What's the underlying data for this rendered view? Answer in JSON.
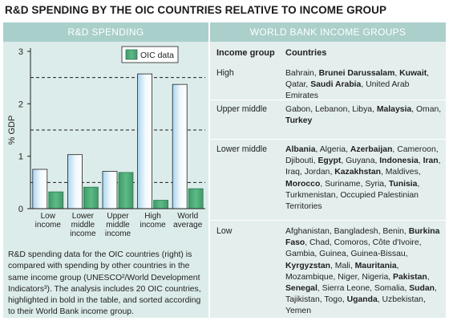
{
  "title": "R&D SPENDING BY THE OIC COUNTRIES RELATIVE TO INCOME GROUP",
  "left_header": "R&D SPENDING",
  "right_header": "WORLD BANK INCOME GROUPS",
  "chart_data": {
    "type": "bar",
    "ylabel": "% GDP",
    "ylim": [
      0,
      3
    ],
    "yticks": [
      "0",
      "1",
      "2",
      "3"
    ],
    "reference_lines": [
      0.5,
      1.5,
      2.5
    ],
    "categories": [
      [
        "Low",
        "income"
      ],
      [
        "Lower",
        "middle",
        "income"
      ],
      [
        "Upper",
        "middle",
        "income"
      ],
      [
        "High",
        "income"
      ],
      [
        "World",
        "average"
      ]
    ],
    "series": [
      {
        "name": "",
        "values": [
          0.75,
          1.03,
          0.71,
          2.57,
          2.37
        ]
      },
      {
        "name": "OIC data",
        "values": [
          0.32,
          0.41,
          0.69,
          0.16,
          0.38
        ]
      }
    ],
    "legend_position": "top-right",
    "colors": {
      "reference_fill": "#ffffff",
      "reference_edge": "#aad6f1",
      "oic_fill": "#4fae7a",
      "oic_edge": "#2a7b52",
      "bar_stroke": "#222222"
    }
  },
  "caption": {
    "text": "R&D spending data for the OIC countries (right) is compared with spending by other countries in the same income group (UNESCO²/World Development Indicators³). The analysis includes 20 OIC countries, highlighted in bold in the table, and sorted according to their World Bank income group."
  },
  "table": {
    "headers": {
      "income_group": "Income group",
      "countries": "Countries"
    },
    "rows": [
      {
        "group": "High",
        "countries": [
          {
            "name": "Bahrain",
            "bold": false
          },
          {
            "name": "Brunei Darussalam",
            "bold": true
          },
          {
            "name": "Kuwait",
            "bold": true
          },
          {
            "name": "Qatar",
            "bold": false
          },
          {
            "name": "Saudi Arabia",
            "bold": true
          },
          {
            "name": "United Arab Emirates",
            "bold": false
          }
        ]
      },
      {
        "group": "Upper middle",
        "countries": [
          {
            "name": "Gabon",
            "bold": false
          },
          {
            "name": "Lebanon",
            "bold": false
          },
          {
            "name": "Libya",
            "bold": false
          },
          {
            "name": "Malaysia",
            "bold": true
          },
          {
            "name": "Oman",
            "bold": false
          },
          {
            "name": "Turkey",
            "bold": true
          }
        ]
      },
      {
        "group": "Lower middle",
        "countries": [
          {
            "name": "Albania",
            "bold": true
          },
          {
            "name": "Algeria",
            "bold": false
          },
          {
            "name": "Azerbaijan",
            "bold": true
          },
          {
            "name": "Cameroon",
            "bold": false
          },
          {
            "name": "Djibouti",
            "bold": false
          },
          {
            "name": "Egypt",
            "bold": true
          },
          {
            "name": "Guyana",
            "bold": false
          },
          {
            "name": "Indonesia",
            "bold": true
          },
          {
            "name": "Iran",
            "bold": true
          },
          {
            "name": "Iraq",
            "bold": false
          },
          {
            "name": "Jordan",
            "bold": false
          },
          {
            "name": "Kazakhstan",
            "bold": true
          },
          {
            "name": "Maldives",
            "bold": false
          },
          {
            "name": "Morocco",
            "bold": true
          },
          {
            "name": "Suriname",
            "bold": false
          },
          {
            "name": "Syria",
            "bold": false
          },
          {
            "name": "Tunisia",
            "bold": true
          },
          {
            "name": "Turkmenistan",
            "bold": false
          },
          {
            "name": "Occupied Palestinian Territories",
            "bold": false
          }
        ]
      },
      {
        "group": "Low",
        "countries": [
          {
            "name": "Afghanistan",
            "bold": false
          },
          {
            "name": "Bangladesh",
            "bold": false
          },
          {
            "name": "Benin",
            "bold": false
          },
          {
            "name": "Burkina Faso",
            "bold": true
          },
          {
            "name": "Chad",
            "bold": false
          },
          {
            "name": "Comoros",
            "bold": false
          },
          {
            "name": "Côte d'Ivoire",
            "bold": false
          },
          {
            "name": "Gambia",
            "bold": false
          },
          {
            "name": "Guinea",
            "bold": false
          },
          {
            "name": "Guinea-Bissau",
            "bold": false
          },
          {
            "name": "Kyrgyzstan",
            "bold": true
          },
          {
            "name": "Mali",
            "bold": false
          },
          {
            "name": "Mauritania",
            "bold": true
          },
          {
            "name": "Mozambique",
            "bold": false
          },
          {
            "name": "Niger",
            "bold": false
          },
          {
            "name": "Nigeria",
            "bold": false
          },
          {
            "name": "Pakistan",
            "bold": true
          },
          {
            "name": "Senegal",
            "bold": true
          },
          {
            "name": "Sierra Leone",
            "bold": false
          },
          {
            "name": "Somalia",
            "bold": false
          },
          {
            "name": "Sudan",
            "bold": true
          },
          {
            "name": "Tajikistan",
            "bold": false
          },
          {
            "name": "Togo",
            "bold": false
          },
          {
            "name": "Uganda",
            "bold": true
          },
          {
            "name": "Uzbekistan",
            "bold": false
          },
          {
            "name": "Yemen",
            "bold": false
          }
        ]
      }
    ]
  }
}
